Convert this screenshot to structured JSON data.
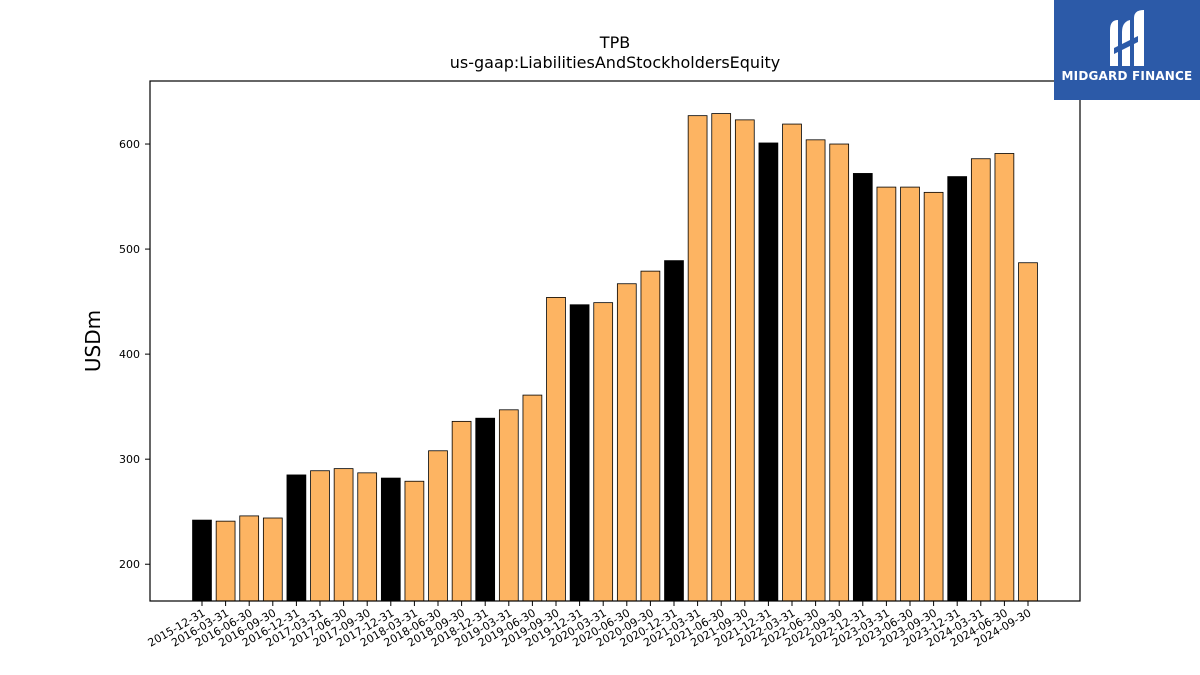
{
  "chart_data": {
    "type": "bar",
    "title": "TPB",
    "subtitle": "us-gaap:LiabilitiesAndStockholdersEquity",
    "ylabel": "USDm",
    "xlabel": "",
    "ylim": [
      165,
      660
    ],
    "yticks": [
      200,
      300,
      400,
      500,
      600
    ],
    "grid": false,
    "colors": {
      "year_end": "#000000",
      "quarter": "#fdb462",
      "edge": "#000000"
    },
    "categories": [
      "2015-12-31",
      "2016-03-31",
      "2016-06-30",
      "2016-09-30",
      "2016-12-31",
      "2017-03-31",
      "2017-06-30",
      "2017-09-30",
      "2017-12-31",
      "2018-03-31",
      "2018-06-30",
      "2018-09-30",
      "2018-12-31",
      "2019-03-31",
      "2019-06-30",
      "2019-09-30",
      "2019-12-31",
      "2020-03-31",
      "2020-06-30",
      "2020-09-30",
      "2020-12-31",
      "2021-03-31",
      "2021-06-30",
      "2021-09-30",
      "2021-12-31",
      "2022-03-31",
      "2022-06-30",
      "2022-09-30",
      "2022-12-31",
      "2023-03-31",
      "2023-06-30",
      "2023-09-30",
      "2023-12-31",
      "2024-03-31",
      "2024-06-30",
      "2024-09-30"
    ],
    "values": [
      242,
      241,
      246,
      244,
      285,
      289,
      291,
      287,
      282,
      279,
      308,
      336,
      339,
      347,
      361,
      454,
      447,
      449,
      467,
      479,
      489,
      627,
      629,
      623,
      601,
      619,
      604,
      600,
      572,
      559,
      559,
      554,
      569,
      586,
      591,
      487
    ]
  },
  "logo": {
    "name": "midgard-logo-icon",
    "text": "MIDGARD FINANCE"
  }
}
